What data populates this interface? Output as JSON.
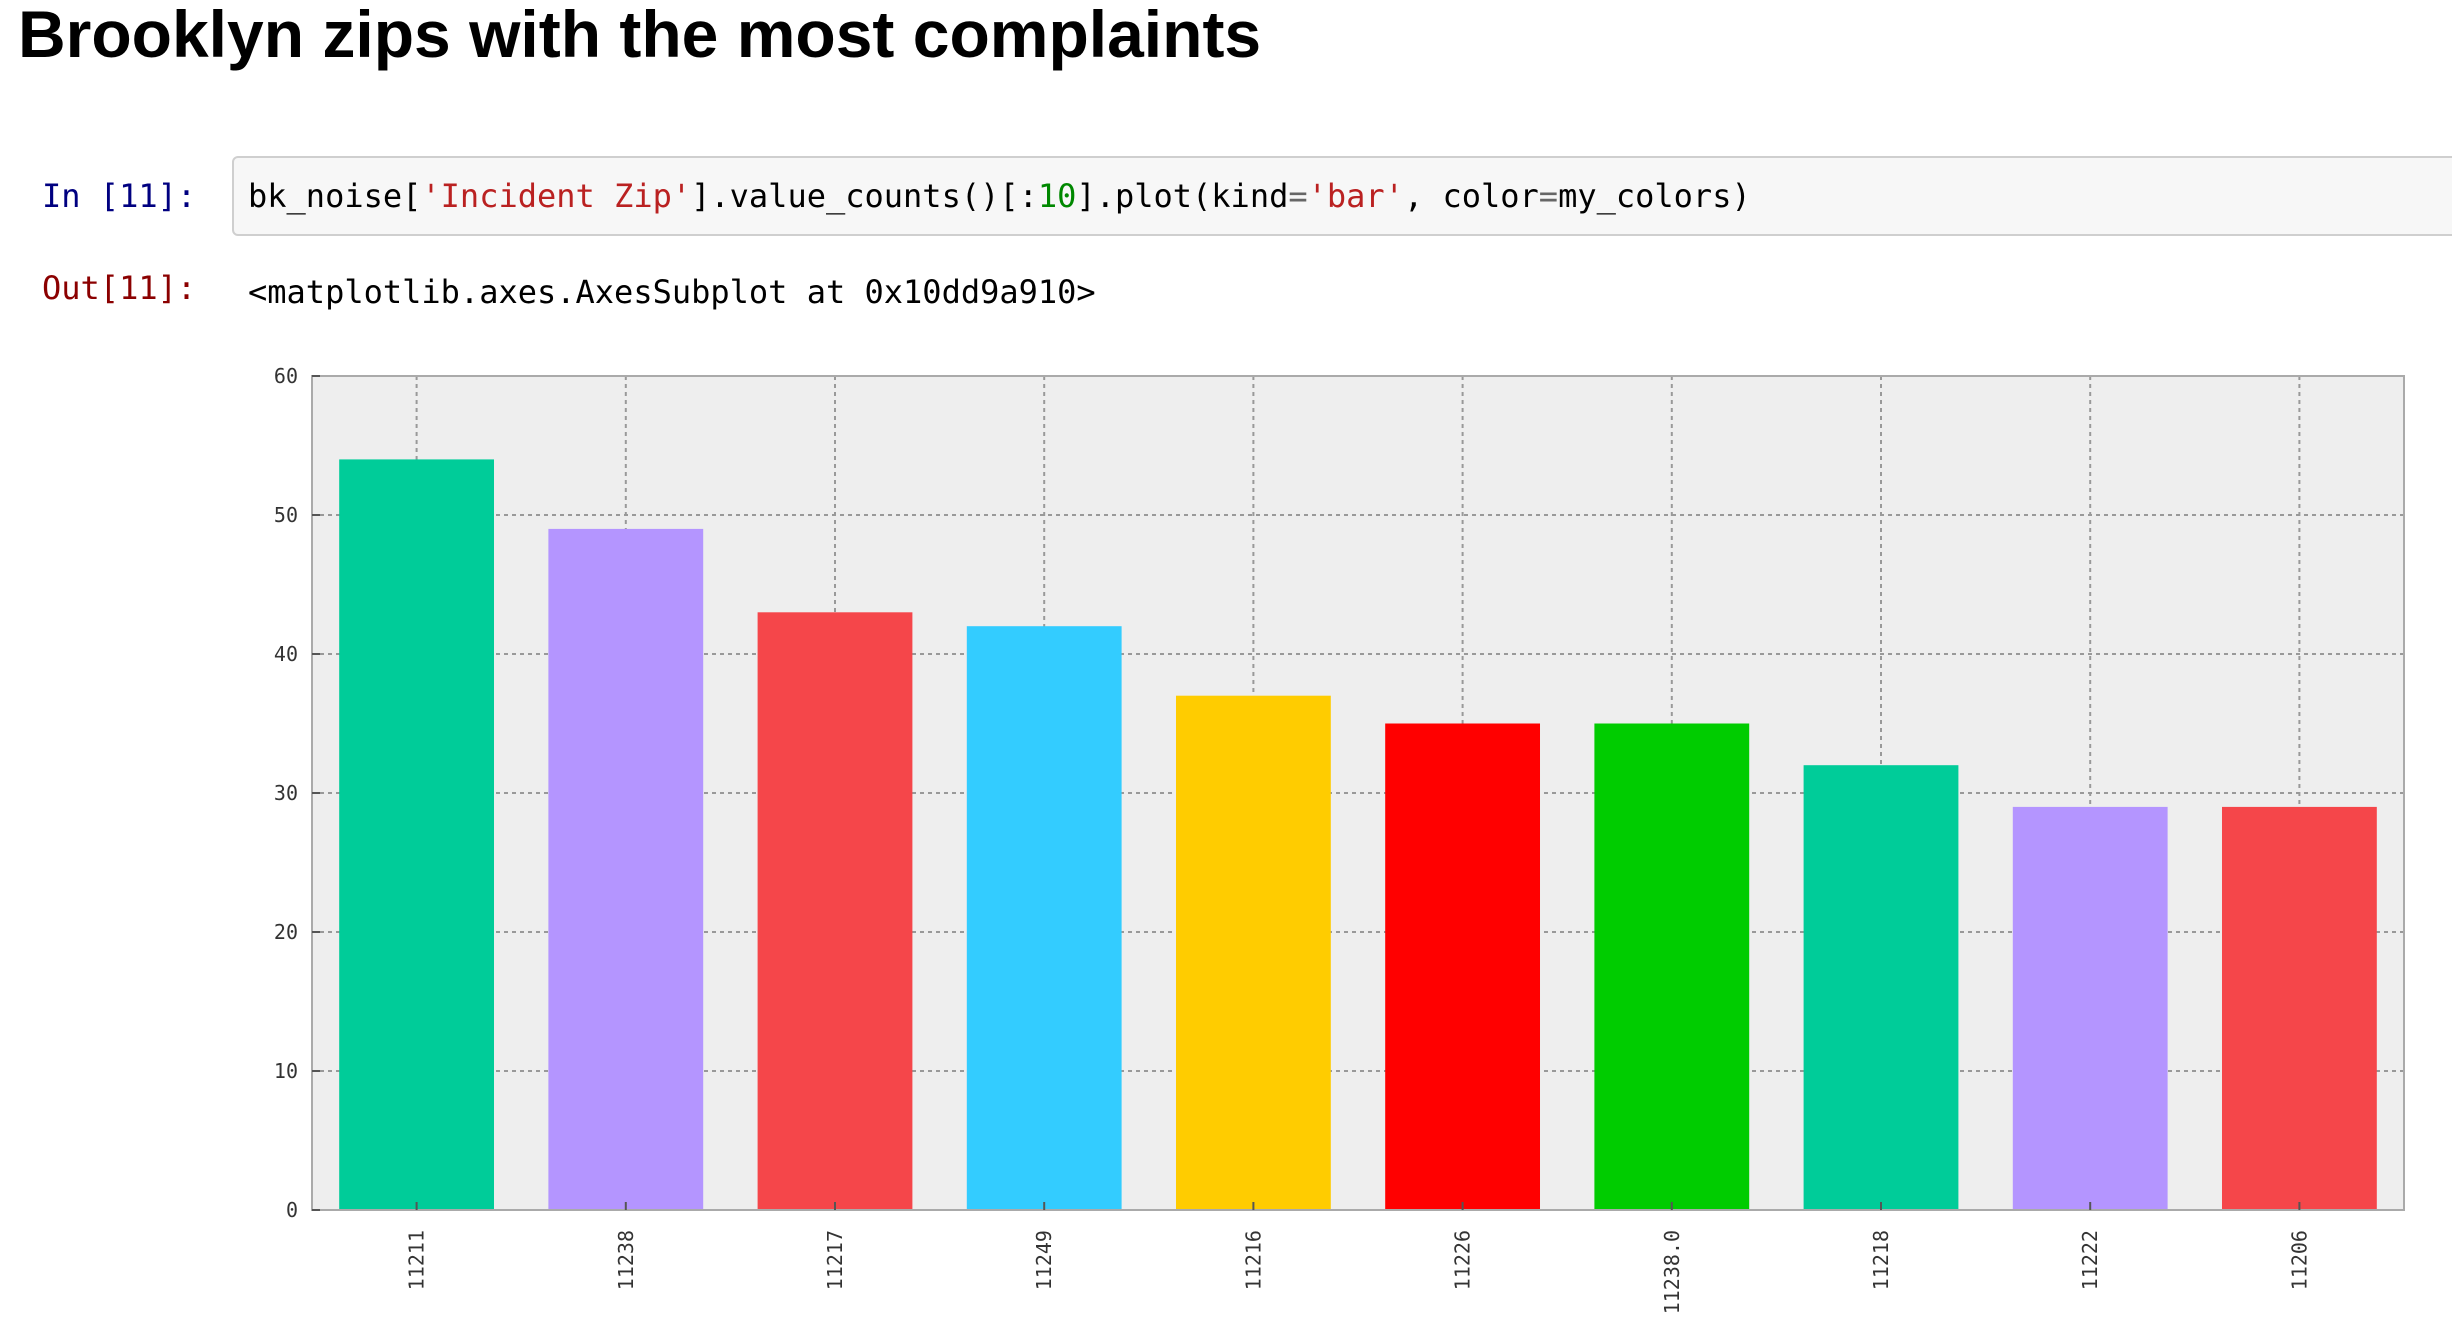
{
  "page": {
    "title": "Brooklyn zips with the most complaints"
  },
  "cell": {
    "in_prompt": "In [11]:",
    "out_prompt": "Out[11]:",
    "code": {
      "p1": "bk_noise[",
      "s1": "'Incident Zip'",
      "p2": "].value_counts()[:",
      "n1": "10",
      "p3": "].plot(kind",
      "eq1": "=",
      "s2": "'bar'",
      "p4": ", color",
      "eq2": "=",
      "p5": "my_colors)"
    },
    "output_text": "<matplotlib.axes.AxesSubplot at 0x10dd9a910>"
  },
  "chart_data": {
    "type": "bar",
    "title": "",
    "xlabel": "",
    "ylabel": "",
    "ylim": [
      0,
      60
    ],
    "yticks": [
      "0",
      "10",
      "20",
      "30",
      "40",
      "50",
      "60"
    ],
    "grid": true,
    "categories": [
      "11211",
      "11238",
      "11217",
      "11249",
      "11216",
      "11226",
      "11238.0",
      "11218",
      "11222",
      "11206"
    ],
    "values": [
      54,
      49,
      43,
      42,
      37,
      35,
      35,
      32,
      29,
      29
    ],
    "colors": [
      "#00cc99",
      "#b495ff",
      "#f5464a",
      "#33ccff",
      "#ffcc00",
      "#ff0000",
      "#00cc00",
      "#00cc99",
      "#b495ff",
      "#f5464a"
    ],
    "background": "#eeeeee"
  }
}
